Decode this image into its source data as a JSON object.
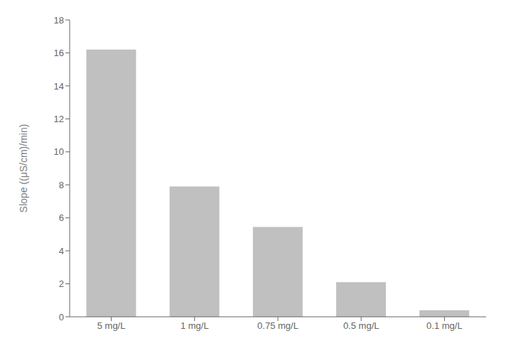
{
  "chart_data": {
    "type": "bar",
    "categories": [
      "5 mg/L",
      "1 mg/L",
      "0.75 mg/L",
      "0.5 mg/L",
      "0.1 mg/L"
    ],
    "values": [
      16.2,
      7.9,
      5.45,
      2.1,
      0.4
    ],
    "color": "#c0c0c0",
    "ylabel": "Slope ((μS/cm)/min)",
    "ylim": [
      0,
      18
    ],
    "yticks": [
      0,
      2,
      4,
      6,
      8,
      10,
      12,
      14,
      16,
      18
    ],
    "grid": false
  }
}
